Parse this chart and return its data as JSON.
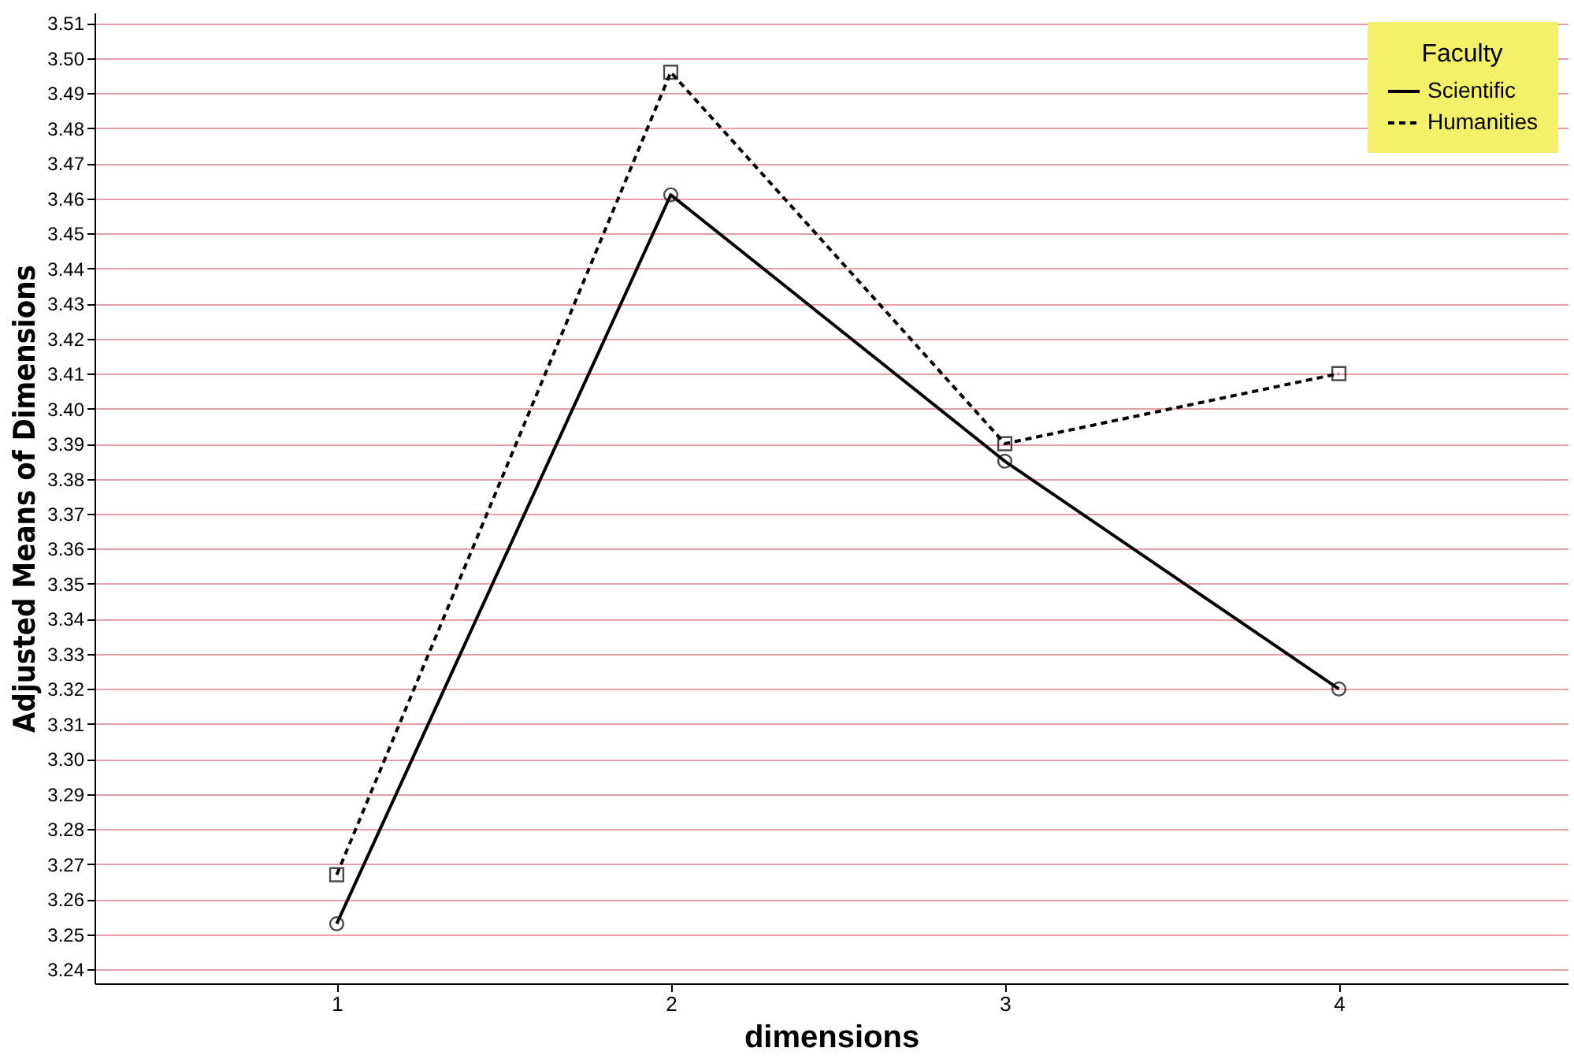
{
  "chart_data": {
    "type": "line",
    "xlabel": "dimensions",
    "ylabel": "Adjusted Means of Dimensions",
    "legend_title": "Faculty",
    "x": [
      1,
      2,
      3,
      4
    ],
    "series": [
      {
        "name": "Scientific",
        "color": "#000000",
        "values": [
          3.253,
          3.461,
          3.385,
          3.32
        ],
        "marker": "circle",
        "line_style": "solid"
      },
      {
        "name": "Humanities",
        "color": "#000000",
        "values": [
          3.267,
          3.496,
          3.39,
          3.41
        ],
        "marker": "square",
        "line_style": "dashed"
      }
    ],
    "xlim": [
      0.275,
      4.685
    ],
    "xticks": [
      {
        "value": 1,
        "label": "1"
      },
      {
        "value": 2,
        "label": "2"
      },
      {
        "value": 3,
        "label": "3"
      },
      {
        "value": 4,
        "label": "4"
      }
    ],
    "ylim": [
      3.236,
      3.513
    ],
    "yticks": [
      3.24,
      3.25,
      3.26,
      3.27,
      3.28,
      3.29,
      {
        "value": 3.3,
        "label": "3.30"
      },
      3.31,
      3.32,
      3.33,
      3.34,
      3.35,
      3.36,
      3.37,
      3.38,
      3.39,
      {
        "value": 3.4,
        "label": "3.40"
      },
      3.41,
      3.42,
      3.43,
      3.44,
      3.45,
      3.46,
      3.47,
      3.48,
      3.49,
      {
        "value": 3.5,
        "label": "3.50"
      },
      3.51
    ],
    "grid": "y",
    "legend": "top right"
  }
}
